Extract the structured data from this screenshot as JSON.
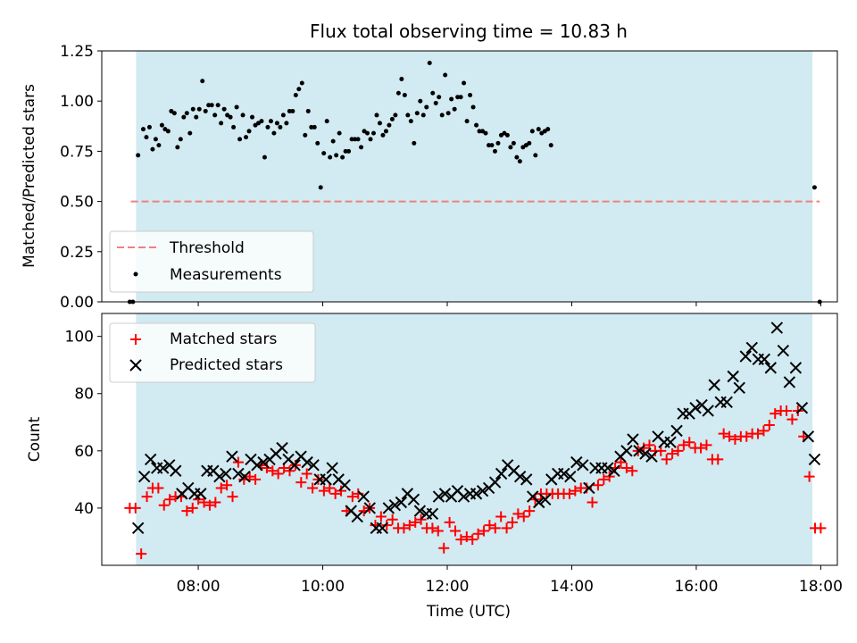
{
  "title": "Flux total observing time = 10.83 h",
  "colors": {
    "shade": "#add8e6",
    "threshold": "#f08080",
    "measurements": "#000000",
    "matched": "#ff0000",
    "predicted": "#000000"
  },
  "chart_data": [
    {
      "type": "scatter",
      "ylabel": "Matched/Predicted stars",
      "xlabel": "",
      "ylim": [
        0,
        1.25
      ],
      "xlim": [
        "06:27",
        "18:16"
      ],
      "yticks": [
        "0.00",
        "0.25",
        "0.50",
        "0.75",
        "1.00",
        "1.25"
      ],
      "observing_window": [
        "07:00",
        "17:52"
      ],
      "threshold": {
        "name": "Threshold",
        "value": 0.5,
        "x_range": [
          "06:55",
          "17:59"
        ]
      },
      "legend": {
        "entries": [
          "Threshold",
          "Measurements"
        ],
        "placement": "lower-left"
      },
      "series": [
        {
          "name": "Measurements",
          "points": [
            [
              "06:54",
              0
            ],
            [
              "06:57",
              0
            ],
            [
              "07:02",
              0.73
            ],
            [
              "07:07",
              0.86
            ],
            [
              "07:10",
              0.82
            ],
            [
              "07:13",
              0.87
            ],
            [
              "07:16",
              0.76
            ],
            [
              "07:19",
              0.81
            ],
            [
              "07:22",
              0.78
            ],
            [
              "07:25",
              0.88
            ],
            [
              "07:28",
              0.86
            ],
            [
              "07:31",
              0.85
            ],
            [
              "07:34",
              0.95
            ],
            [
              "07:37",
              0.94
            ],
            [
              "07:40",
              0.77
            ],
            [
              "07:43",
              0.81
            ],
            [
              "07:46",
              0.92
            ],
            [
              "07:49",
              0.94
            ],
            [
              "07:52",
              0.84
            ],
            [
              "07:55",
              0.96
            ],
            [
              "07:58",
              0.92
            ],
            [
              "08:01",
              0.96
            ],
            [
              "08:04",
              1.1
            ],
            [
              "08:07",
              0.95
            ],
            [
              "08:10",
              0.98
            ],
            [
              "08:13",
              0.98
            ],
            [
              "08:16",
              0.93
            ],
            [
              "08:19",
              0.98
            ],
            [
              "08:22",
              0.89
            ],
            [
              "08:25",
              0.96
            ],
            [
              "08:28",
              0.93
            ],
            [
              "08:31",
              0.92
            ],
            [
              "08:34",
              0.87
            ],
            [
              "08:37",
              0.97
            ],
            [
              "08:40",
              0.81
            ],
            [
              "08:43",
              0.93
            ],
            [
              "08:46",
              0.82
            ],
            [
              "08:49",
              0.85
            ],
            [
              "08:52",
              0.92
            ],
            [
              "08:55",
              0.88
            ],
            [
              "08:58",
              0.89
            ],
            [
              "09:01",
              0.9
            ],
            [
              "09:04",
              0.72
            ],
            [
              "09:07",
              0.87
            ],
            [
              "09:10",
              0.9
            ],
            [
              "09:13",
              0.84
            ],
            [
              "09:16",
              0.89
            ],
            [
              "09:19",
              0.87
            ],
            [
              "09:22",
              0.93
            ],
            [
              "09:25",
              0.89
            ],
            [
              "09:28",
              0.95
            ],
            [
              "09:31",
              0.95
            ],
            [
              "09:34",
              1.03
            ],
            [
              "09:37",
              1.06
            ],
            [
              "09:40",
              1.09
            ],
            [
              "09:43",
              0.83
            ],
            [
              "09:46",
              0.95
            ],
            [
              "09:49",
              0.87
            ],
            [
              "09:52",
              0.87
            ],
            [
              "09:55",
              0.79
            ],
            [
              "09:58",
              0.57
            ],
            [
              "10:01",
              0.74
            ],
            [
              "10:04",
              0.9
            ],
            [
              "10:07",
              0.72
            ],
            [
              "10:10",
              0.8
            ],
            [
              "10:13",
              0.73
            ],
            [
              "10:16",
              0.84
            ],
            [
              "10:19",
              0.72
            ],
            [
              "10:22",
              0.75
            ],
            [
              "10:25",
              0.75
            ],
            [
              "10:28",
              0.81
            ],
            [
              "10:31",
              0.81
            ],
            [
              "10:34",
              0.81
            ],
            [
              "10:37",
              0.77
            ],
            [
              "10:40",
              0.85
            ],
            [
              "10:43",
              0.84
            ],
            [
              "10:46",
              0.81
            ],
            [
              "10:49",
              0.84
            ],
            [
              "10:52",
              0.93
            ],
            [
              "10:55",
              0.89
            ],
            [
              "10:58",
              0.83
            ],
            [
              "11:01",
              0.85
            ],
            [
              "11:04",
              0.88
            ],
            [
              "11:07",
              0.91
            ],
            [
              "11:10",
              0.93
            ],
            [
              "11:13",
              1.04
            ],
            [
              "11:16",
              1.11
            ],
            [
              "11:19",
              1.03
            ],
            [
              "11:22",
              0.93
            ],
            [
              "11:25",
              0.9
            ],
            [
              "11:28",
              0.79
            ],
            [
              "11:31",
              0.94
            ],
            [
              "11:34",
              1.0
            ],
            [
              "11:37",
              0.93
            ],
            [
              "11:40",
              0.97
            ],
            [
              "11:43",
              1.19
            ],
            [
              "11:46",
              1.04
            ],
            [
              "11:49",
              0.99
            ],
            [
              "11:52",
              1.02
            ],
            [
              "11:55",
              0.93
            ],
            [
              "11:58",
              1.13
            ],
            [
              "12:01",
              0.94
            ],
            [
              "12:04",
              1.01
            ],
            [
              "12:07",
              0.96
            ],
            [
              "12:10",
              1.02
            ],
            [
              "12:13",
              1.02
            ],
            [
              "12:16",
              1.09
            ],
            [
              "12:19",
              0.9
            ],
            [
              "12:22",
              1.03
            ],
            [
              "12:25",
              0.97
            ],
            [
              "12:28",
              0.88
            ],
            [
              "12:31",
              0.85
            ],
            [
              "12:34",
              0.85
            ],
            [
              "12:37",
              0.84
            ],
            [
              "12:40",
              0.78
            ],
            [
              "12:43",
              0.78
            ],
            [
              "12:46",
              0.75
            ],
            [
              "12:49",
              0.79
            ],
            [
              "12:52",
              0.83
            ],
            [
              "12:55",
              0.84
            ],
            [
              "12:58",
              0.83
            ],
            [
              "13:01",
              0.77
            ],
            [
              "13:04",
              0.79
            ],
            [
              "13:07",
              0.72
            ],
            [
              "13:10",
              0.7
            ],
            [
              "13:13",
              0.77
            ],
            [
              "13:16",
              0.78
            ],
            [
              "13:19",
              0.79
            ],
            [
              "13:22",
              0.85
            ],
            [
              "13:25",
              0.73
            ],
            [
              "13:28",
              0.86
            ],
            [
              "13:31",
              0.84
            ],
            [
              "13:34",
              0.85
            ],
            [
              "13:37",
              0.86
            ],
            [
              "13:40",
              0.78
            ],
            [
              "17:54",
              0.57
            ],
            [
              "17:59",
              0
            ]
          ]
        }
      ]
    },
    {
      "type": "scatter",
      "ylabel": "Count",
      "xlabel": "Time (UTC)",
      "ylim": [
        20,
        108
      ],
      "xlim": [
        "06:27",
        "18:16"
      ],
      "yticks": [
        "40",
        "60",
        "80",
        "100"
      ],
      "xticks": [
        "08:00",
        "10:00",
        "12:00",
        "14:00",
        "16:00",
        "18:00"
      ],
      "observing_window": [
        "07:00",
        "17:52"
      ],
      "legend": {
        "entries": [
          "Matched stars",
          "Predicted stars"
        ],
        "placement": "upper-left"
      },
      "series": [
        {
          "name": "Matched stars",
          "values": [
            40,
            40,
            24,
            44,
            47,
            47,
            41,
            43,
            44,
            44,
            39,
            40,
            43,
            42,
            41,
            42,
            47,
            48,
            44,
            56,
            50,
            51,
            50,
            55,
            54,
            53,
            52,
            54,
            53,
            55,
            49,
            52,
            47,
            50,
            46,
            47,
            45,
            46,
            39,
            44,
            45,
            39,
            40,
            34,
            37,
            34,
            36,
            33,
            33,
            34,
            35,
            36,
            33,
            33,
            32,
            26,
            35,
            32,
            29,
            30,
            29,
            31,
            32,
            34,
            33,
            37,
            33,
            35,
            38,
            37,
            39,
            43,
            45,
            45,
            45,
            45,
            45,
            45,
            46,
            47,
            47,
            42,
            48,
            50,
            51,
            54,
            56,
            54,
            53,
            60,
            61,
            62,
            60,
            60,
            57,
            59,
            60,
            62,
            63,
            61,
            61,
            62,
            57,
            57,
            66,
            65,
            64,
            65,
            65,
            66,
            66,
            67,
            69,
            73,
            74,
            74,
            71,
            74,
            65,
            51,
            33,
            33
          ]
        },
        {
          "name": "Predicted stars",
          "values": [
            33,
            51,
            57,
            54,
            54,
            55,
            53,
            45,
            47,
            45,
            45,
            53,
            53,
            51,
            52,
            58,
            52,
            51,
            57,
            55,
            56,
            57,
            59,
            61,
            57,
            55,
            58,
            56,
            55,
            50,
            50,
            54,
            50,
            48,
            39,
            37,
            44,
            40,
            33,
            33,
            40,
            41,
            42,
            45,
            43,
            39,
            38,
            38,
            44,
            45,
            44,
            46,
            44,
            45,
            45,
            46,
            47,
            49,
            52,
            55,
            53,
            51,
            50,
            44,
            42,
            43,
            50,
            52,
            52,
            51,
            56,
            55,
            47,
            54,
            54,
            54,
            53,
            58,
            60,
            64,
            60,
            59,
            58,
            65,
            63,
            63,
            67,
            73,
            73,
            75,
            76,
            74,
            83,
            77,
            77,
            86,
            82,
            93,
            96,
            92,
            92,
            89,
            103,
            95,
            84,
            89,
            75,
            65,
            57
          ]
        }
      ]
    }
  ]
}
